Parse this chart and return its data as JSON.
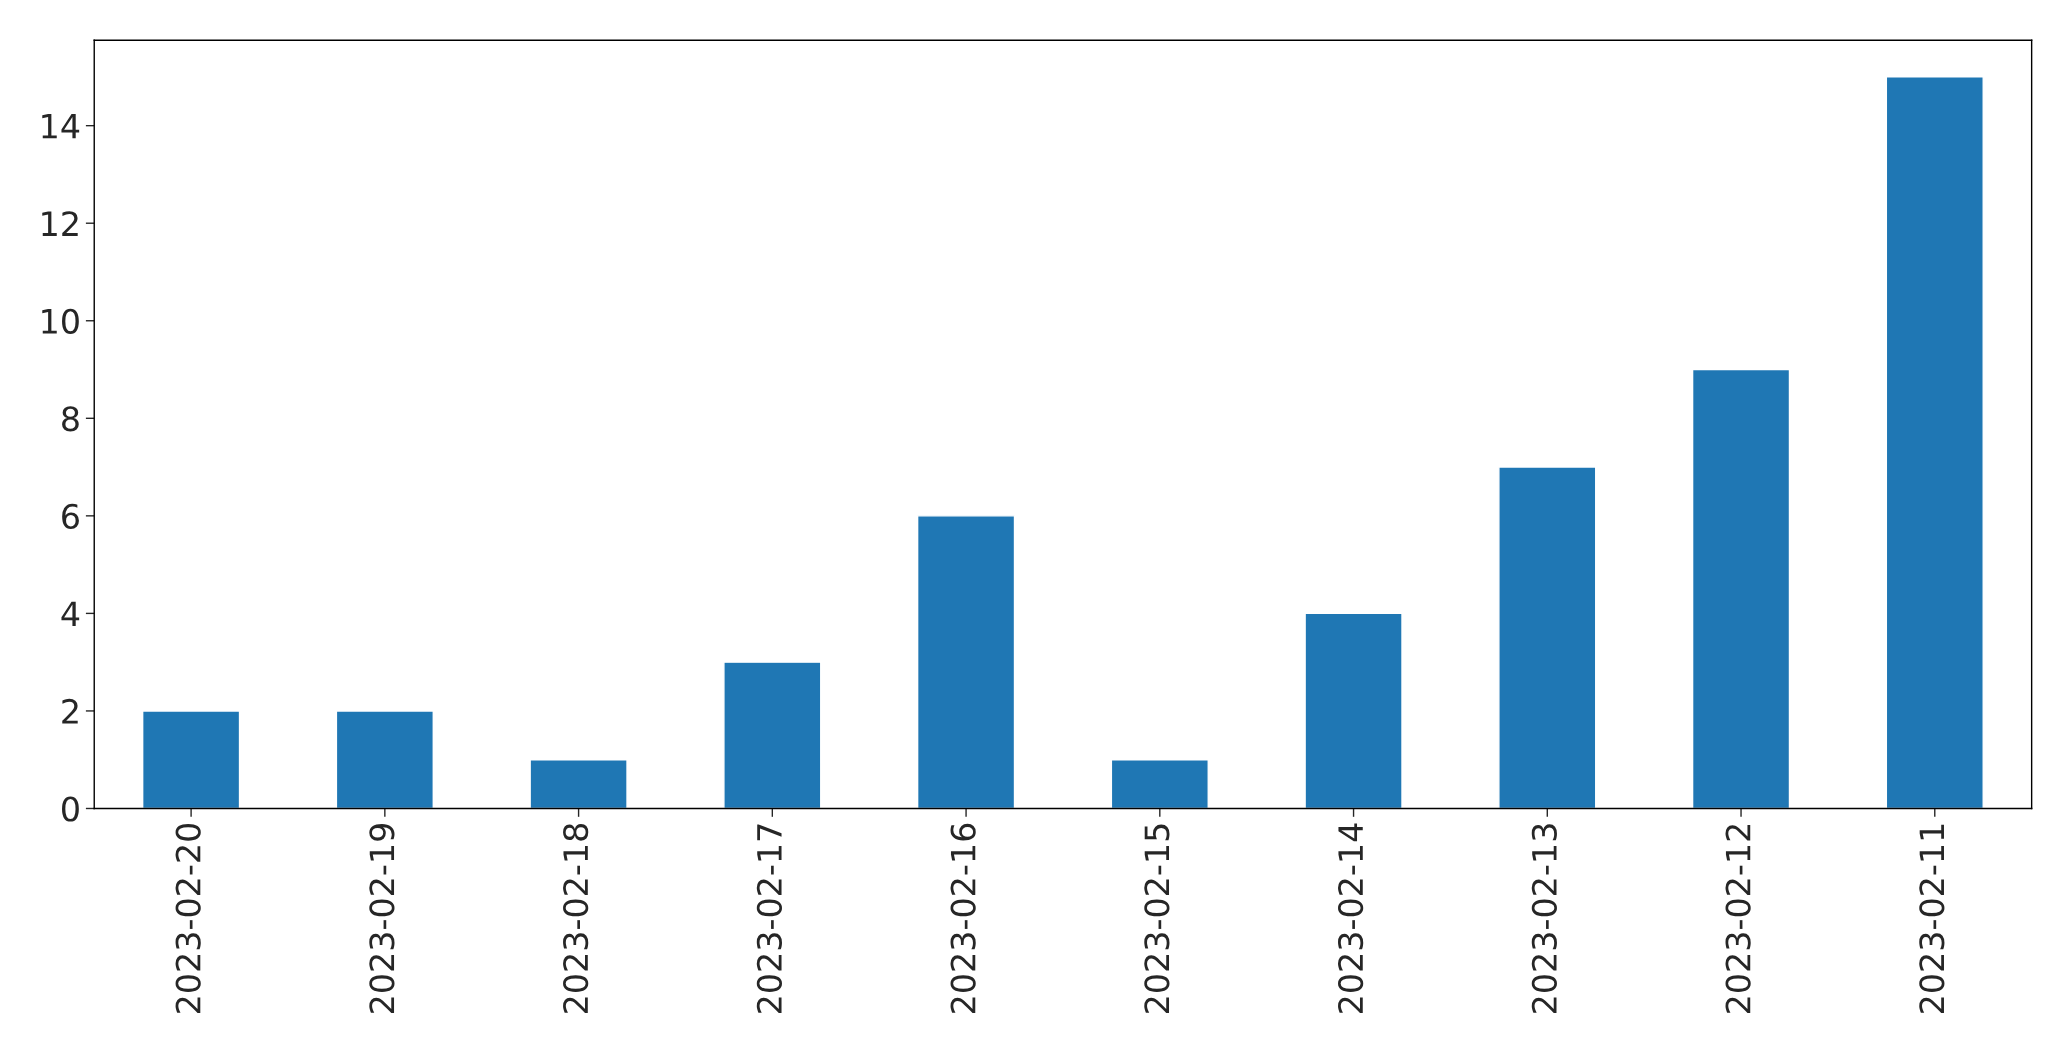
{
  "chart_data": {
    "type": "bar",
    "categories": [
      "2023-02-20",
      "2023-02-19",
      "2023-02-18",
      "2023-02-17",
      "2023-02-16",
      "2023-02-15",
      "2023-02-14",
      "2023-02-13",
      "2023-02-12",
      "2023-02-11"
    ],
    "values": [
      2,
      2,
      1,
      3,
      6,
      1,
      4,
      7,
      9,
      15
    ],
    "color": "#1f77b4",
    "ylim": [
      0,
      15.75
    ],
    "yticks": [
      0,
      2,
      4,
      6,
      8,
      10,
      12,
      14
    ],
    "grid": false,
    "legend": false
  }
}
